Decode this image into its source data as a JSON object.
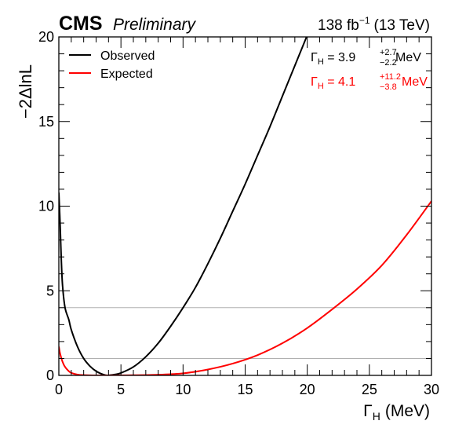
{
  "chart_data": {
    "type": "line",
    "experiment": "CMS",
    "status": "Preliminary",
    "luminosity_prefix": "138 fb",
    "luminosity_sup": "−1",
    "energy": "(13 TeV)",
    "xlabel_symbol": "Γ",
    "xlabel_sub": "H",
    "xlabel_unit": "(MeV)",
    "ylabel": "−2ΔlnL",
    "xlim": [
      0,
      30
    ],
    "ylim": [
      0,
      20
    ],
    "x_ticks": [
      "0",
      "5",
      "10",
      "15",
      "20",
      "25",
      "30"
    ],
    "y_ticks": [
      "0",
      "5",
      "10",
      "15",
      "20"
    ],
    "reference_lines": [
      1,
      4
    ],
    "legend_position": "top-left",
    "series": [
      {
        "name": "Observed",
        "color": "#000000",
        "result": {
          "prefix": "Γ",
          "sub": "H",
          "value": " = 3.9",
          "up": "+2.7",
          "down": "−2.2",
          "unit": " MeV"
        },
        "x": [
          0,
          0.1,
          0.2,
          0.3,
          0.5,
          0.8,
          1.0,
          1.5,
          2.0,
          2.5,
          3.0,
          3.5,
          3.9,
          4.5,
          5,
          6,
          7,
          8,
          9,
          10,
          11,
          12,
          13,
          14,
          15,
          16,
          17,
          18,
          19,
          20
        ],
        "y": [
          10.8,
          9.0,
          6.8,
          5.3,
          4.0,
          3.3,
          2.7,
          1.7,
          1.0,
          0.55,
          0.25,
          0.07,
          0.0,
          0.05,
          0.14,
          0.5,
          1.1,
          1.9,
          2.9,
          4.0,
          5.2,
          6.6,
          8.1,
          9.7,
          11.3,
          13.0,
          14.7,
          16.5,
          18.3,
          20.1
        ]
      },
      {
        "name": "Expected",
        "color": "#ff0000",
        "result": {
          "prefix": "Γ",
          "sub": "H",
          "value": " = 4.1",
          "up": "+11.2",
          "down": "−3.8",
          "unit": " MeV"
        },
        "x": [
          0,
          0.1,
          0.3,
          0.5,
          0.8,
          1.0,
          1.5,
          2,
          3,
          4.1,
          6,
          8,
          10,
          12,
          14,
          16,
          18,
          20,
          22,
          24,
          26,
          28,
          30
        ],
        "y": [
          1.7,
          1.3,
          0.8,
          0.5,
          0.25,
          0.15,
          0.05,
          0.02,
          0.0,
          0.0,
          0.01,
          0.04,
          0.12,
          0.35,
          0.7,
          1.2,
          1.9,
          2.8,
          3.9,
          5.1,
          6.5,
          8.3,
          10.3
        ]
      }
    ]
  }
}
